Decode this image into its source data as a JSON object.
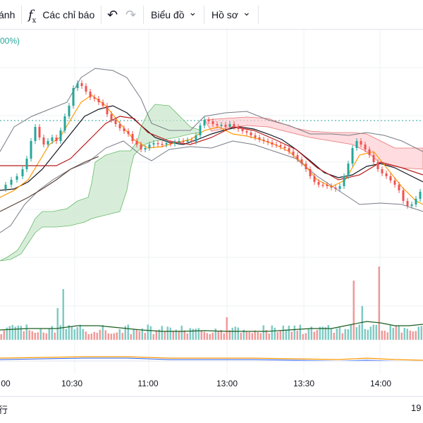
{
  "toolbar": {
    "partial_label": "ánh",
    "indicators_label": "Các chỉ báo",
    "chart_type_label": "Biểu đồ",
    "profile_label": "Hồ sơ",
    "fx_glyph": "f",
    "fx_sub": "x",
    "undo_glyph": "↶",
    "redo_glyph": "↷",
    "chevron_glyph": "⌄"
  },
  "chart": {
    "overlay_percent": "00%)",
    "time_labels": [
      "00",
      "10:30",
      "11:00",
      "13:00",
      "13:30",
      "14:00"
    ],
    "up_color": "#26a69a",
    "down_color": "#ef5350",
    "cloud_up_color": "#a5d6a7",
    "cloud_down_color": "#ef9a9a"
  },
  "bottom": {
    "left_label": "行",
    "right_label": "19"
  }
}
